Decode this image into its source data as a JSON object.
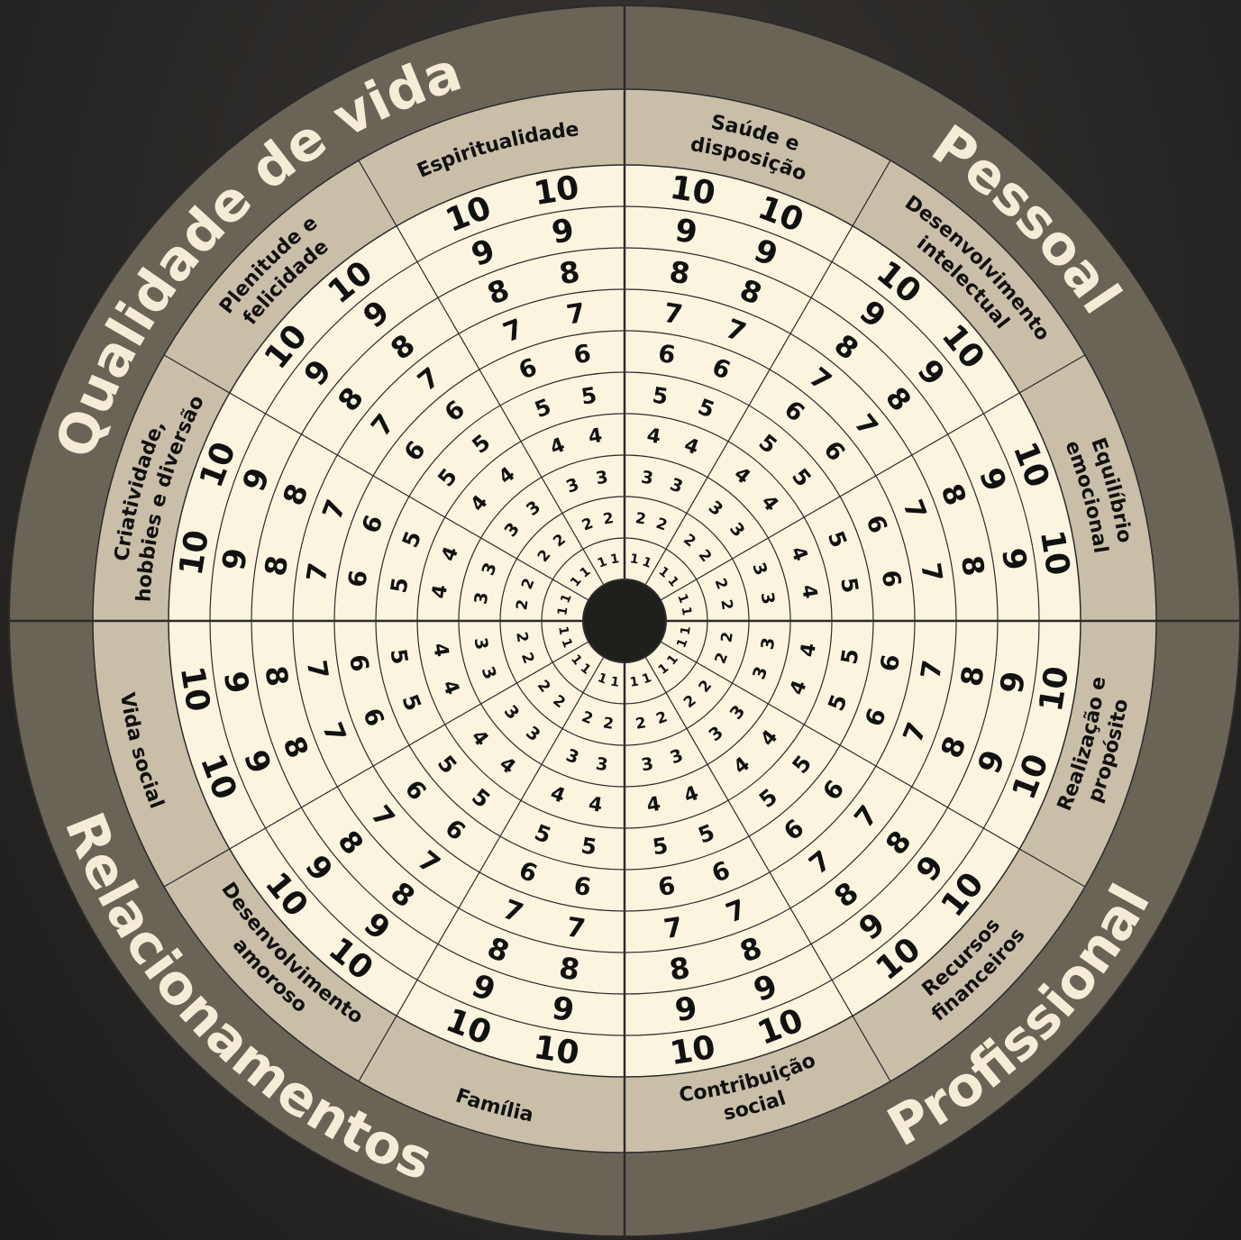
{
  "colors": {
    "outer_ring": "#6a6457",
    "category_ring": "#c9bfa9",
    "score_area": "#fbf5df",
    "lines": "#2b2b2b",
    "center": "#1f1f1b",
    "title_text": "#f4ecd6",
    "label_text": "#111111"
  },
  "quadrants": [
    {
      "id": "pessoal",
      "title": "Pessoal"
    },
    {
      "id": "profissional",
      "title": "Profissional"
    },
    {
      "id": "relacionamentos",
      "title": "Relacionamentos"
    },
    {
      "id": "qualidade",
      "title": "Qualidade de vida"
    }
  ],
  "categories": [
    {
      "name": "Saúde e disposição",
      "lines": [
        "Saúde e",
        "disposição"
      ]
    },
    {
      "name": "Desenvolvimento intelectual",
      "lines": [
        "Desenvolvimento",
        "intelectual"
      ]
    },
    {
      "name": "Equilíbrio emocional",
      "lines": [
        "Equilíbrio",
        "emocional"
      ]
    },
    {
      "name": "Realização e propósito",
      "lines": [
        "Realização e",
        "propósito"
      ]
    },
    {
      "name": "Recursos financeiros",
      "lines": [
        "Recursos",
        "financeiros"
      ]
    },
    {
      "name": "Contribuição social",
      "lines": [
        "Contribuição",
        "social"
      ]
    },
    {
      "name": "Família",
      "lines": [
        "Família"
      ]
    },
    {
      "name": "Desenvolvimento amoroso",
      "lines": [
        "Desenvolvimento",
        "amoroso"
      ]
    },
    {
      "name": "Vida social",
      "lines": [
        "Vida social"
      ]
    },
    {
      "name": "Criatividade, hobbies e diversão",
      "lines": [
        "Criatividade,",
        "hobbies e diversão"
      ]
    },
    {
      "name": "Plenitude e felicidade",
      "lines": [
        "Plenitude e",
        "felicidade"
      ]
    },
    {
      "name": "Espiritualidade",
      "lines": [
        "Espiritualidade"
      ]
    }
  ],
  "scale": [
    "1",
    "2",
    "3",
    "4",
    "5",
    "6",
    "7",
    "8",
    "9",
    "10"
  ]
}
